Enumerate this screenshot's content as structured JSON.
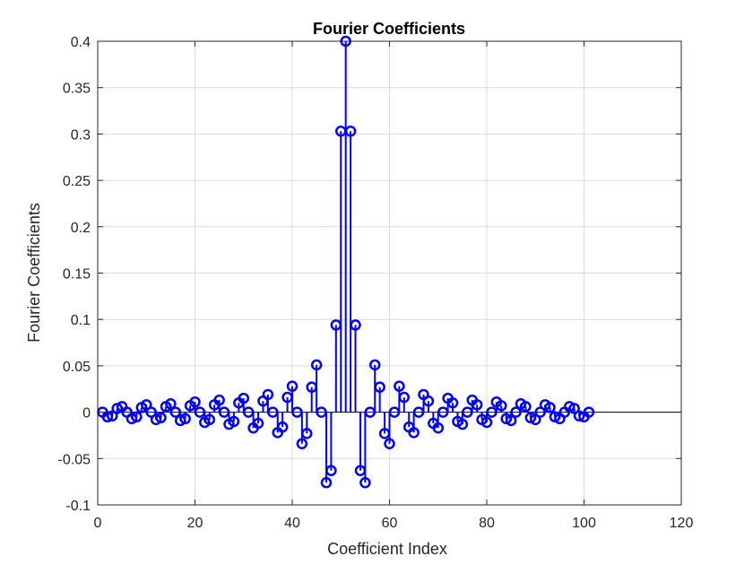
{
  "chart_data": {
    "type": "stem",
    "title": "Fourier Coefficients",
    "xlabel": "Coefficient Index",
    "ylabel": "Fourier Coefficients",
    "xlim": [
      0,
      120
    ],
    "ylim": [
      -0.1,
      0.4
    ],
    "xticks": [
      0,
      20,
      40,
      60,
      80,
      100,
      120
    ],
    "yticks": [
      -0.1,
      -0.05,
      0,
      0.05,
      0.1,
      0.15,
      0.2,
      0.25,
      0.3,
      0.35,
      0.4
    ],
    "ytick_labels": [
      "-0.1",
      "-0.05",
      "0",
      "0.05",
      "0.1",
      "0.15",
      "0.2",
      "0.25",
      "0.3",
      "0.35",
      "0.4"
    ],
    "grid": true,
    "colors": {
      "stem": "#0000ff",
      "grid": "#dcdcdc",
      "axis": "#262626"
    },
    "series": [
      {
        "x": [
          1,
          2,
          3,
          4,
          5,
          6,
          7,
          8,
          9,
          10,
          11,
          12,
          13,
          14,
          15,
          16,
          17,
          18,
          19,
          20,
          21,
          22,
          23,
          24,
          25,
          26,
          27,
          28,
          29,
          30,
          31,
          32,
          33,
          34,
          35,
          36,
          37,
          38,
          39,
          40,
          41,
          42,
          43,
          44,
          45,
          46,
          47,
          48,
          49,
          50,
          51,
          52,
          53,
          54,
          55,
          56,
          57,
          58,
          59,
          60,
          61,
          62,
          63,
          64,
          65,
          66,
          67,
          68,
          69,
          70,
          71,
          72,
          73,
          74,
          75,
          76,
          77,
          78,
          79,
          80,
          81,
          82,
          83,
          84,
          85,
          86,
          87,
          88,
          89,
          90,
          91,
          92,
          93,
          94,
          95,
          96,
          97,
          98,
          99,
          100,
          101
        ],
        "y": [
          0,
          -0.005,
          -0.004,
          0.004,
          0.006,
          0,
          -0.007,
          -0.005,
          0.005,
          0.008,
          0,
          -0.008,
          -0.006,
          0.006,
          0.009,
          0,
          -0.009,
          -0.007,
          0.007,
          0.011,
          0,
          -0.011,
          -0.008,
          0.008,
          0.013,
          0,
          -0.013,
          -0.01,
          0.01,
          0.015,
          0,
          -0.017,
          -0.012,
          0.012,
          0.019,
          0,
          -0.022,
          -0.016,
          0.016,
          0.028,
          0,
          -0.034,
          -0.023,
          0.027,
          0.051,
          0,
          -0.076,
          -0.063,
          0.094,
          0.303,
          0.4,
          0.303,
          0.094,
          -0.063,
          -0.076,
          0,
          0.051,
          0.027,
          -0.023,
          -0.034,
          0,
          0.028,
          0.016,
          -0.016,
          -0.022,
          0,
          0.019,
          0.012,
          -0.012,
          -0.017,
          0,
          0.015,
          0.01,
          -0.01,
          -0.013,
          0,
          0.013,
          0.008,
          -0.008,
          -0.011,
          0,
          0.011,
          0.007,
          -0.007,
          -0.009,
          0,
          0.009,
          0.006,
          -0.006,
          -0.008,
          0,
          0.008,
          0.005,
          -0.005,
          -0.007,
          0,
          0.006,
          0.004,
          -0.004,
          -0.005,
          0
        ]
      }
    ]
  }
}
